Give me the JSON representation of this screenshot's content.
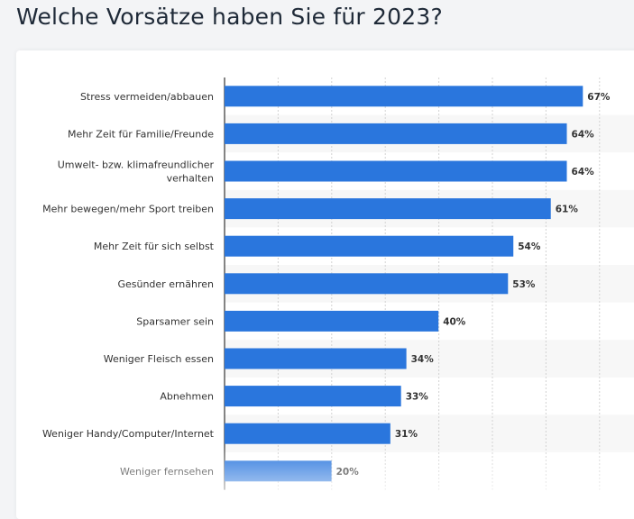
{
  "page": {
    "title": "Welche Vorsätze haben Sie für 2023?"
  },
  "colors": {
    "bar": "#2a76dd",
    "band": "#f7f7f7",
    "grid": "#d3d3d3",
    "axis": "#333333"
  },
  "chart_data": {
    "type": "bar",
    "orientation": "horizontal",
    "title": "Welche Vorsätze haben Sie für 2023?",
    "xlabel": "",
    "ylabel": "",
    "unit": "%",
    "xlim": [
      0,
      70
    ],
    "grid": true,
    "categories": [
      [
        "Stress vermeiden/abbauen"
      ],
      [
        "Mehr Zeit für Familie/Freunde"
      ],
      [
        "Umwelt- bzw. klimafreundlicher",
        "verhalten"
      ],
      [
        "Mehr bewegen/mehr Sport treiben"
      ],
      [
        "Mehr Zeit für sich selbst"
      ],
      [
        "Gesünder ernähren"
      ],
      [
        "Sparsamer sein"
      ],
      [
        "Weniger Fleisch essen"
      ],
      [
        "Abnehmen"
      ],
      [
        "Weniger Handy/Computer/Internet"
      ],
      [
        "Weniger fernsehen"
      ]
    ],
    "values": [
      67,
      64,
      64,
      61,
      54,
      53,
      40,
      34,
      33,
      31,
      20
    ],
    "value_labels": [
      "67%",
      "64%",
      "64%",
      "61%",
      "54%",
      "53%",
      "40%",
      "34%",
      "33%",
      "31%",
      "20%"
    ]
  }
}
